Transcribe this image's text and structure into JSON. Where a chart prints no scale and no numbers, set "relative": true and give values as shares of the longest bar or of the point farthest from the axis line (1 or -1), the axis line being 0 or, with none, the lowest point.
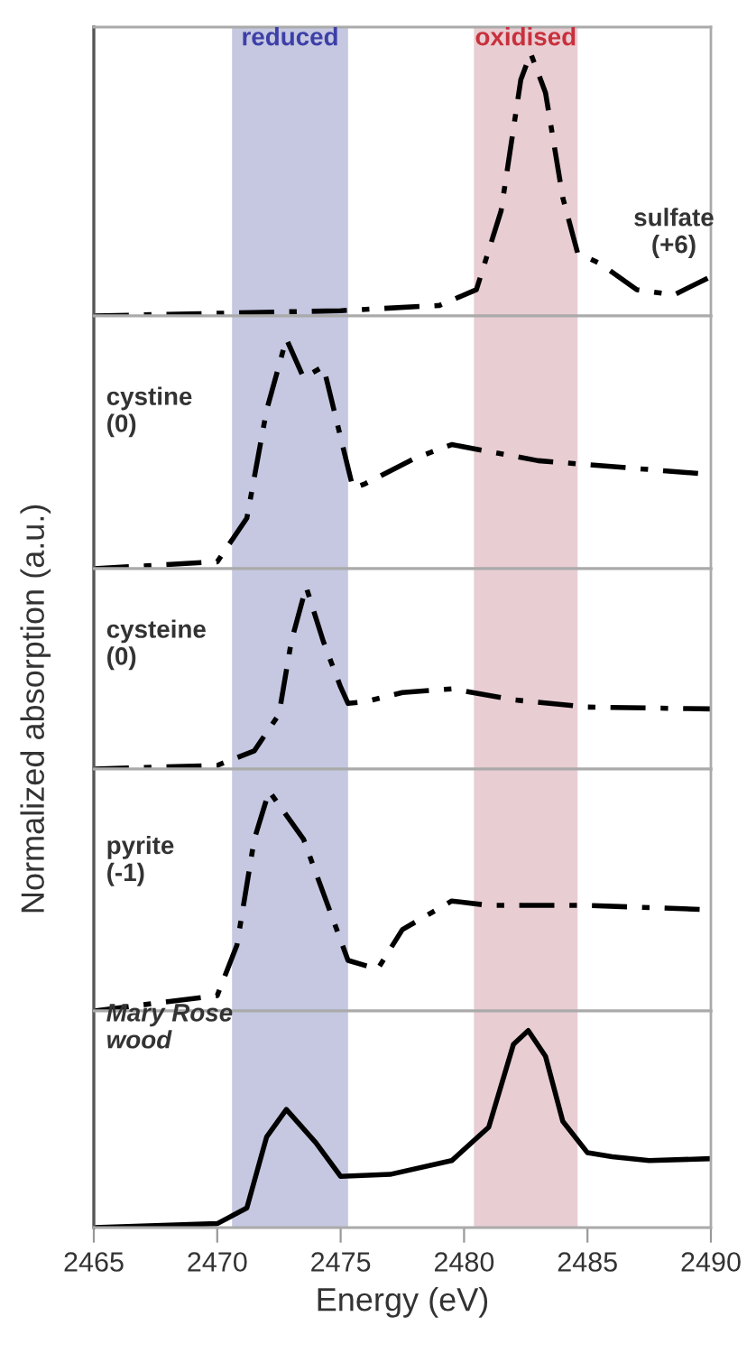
{
  "chart_data": [
    {
      "type": "line",
      "relative": true,
      "xlim": [
        2465,
        2490
      ],
      "xticks": [
        2465,
        2470,
        2475,
        2480,
        2485,
        2490
      ],
      "tick_labels": false,
      "line_style": "dashed",
      "grid": false,
      "legend": false,
      "series": [
        {
          "name": "sulfate\n(+6)",
          "color": "#000000",
          "x": [
            2465,
            2470,
            2475,
            2479,
            2480.5,
            2481.5,
            2482.3,
            2482.7,
            2483.3,
            2484,
            2484.6,
            2485.5,
            2487,
            2488.5,
            2490
          ],
          "values": [
            0,
            0.01,
            0.02,
            0.04,
            0.1,
            0.4,
            0.9,
            1,
            0.85,
            0.45,
            0.24,
            0.2,
            0.1,
            0.08,
            0.15
          ]
        }
      ],
      "bands": [
        {
          "axis": "x",
          "from": 2470.6,
          "to": 2475.3,
          "label": "reduced",
          "color": "#c5c8e0"
        },
        {
          "axis": "x",
          "from": 2480.4,
          "to": 2484.6,
          "label": "oxidised",
          "color": "#e8cdd2"
        }
      ]
    },
    {
      "type": "line",
      "relative": true,
      "xlim": [
        2465,
        2490
      ],
      "xticks": [
        2465,
        2470,
        2475,
        2480,
        2485,
        2490
      ],
      "tick_labels": false,
      "line_style": "dashed",
      "grid": false,
      "legend": false,
      "series": [
        {
          "name": "cystine\n(0)",
          "color": "#000000",
          "x": [
            2465,
            2470,
            2471.2,
            2472,
            2472.8,
            2473.5,
            2474.3,
            2475.5,
            2476,
            2478,
            2479.5,
            2483,
            2490
          ],
          "values": [
            0,
            0.03,
            0.22,
            0.69,
            1,
            0.83,
            0.88,
            0.35,
            0.37,
            0.48,
            0.54,
            0.47,
            0.41
          ]
        }
      ],
      "bands": [
        {
          "axis": "x",
          "from": 2470.6,
          "to": 2475.3,
          "color": "#c5c8e0"
        },
        {
          "axis": "x",
          "from": 2480.4,
          "to": 2484.6,
          "color": "#e8cdd2"
        }
      ]
    },
    {
      "type": "line",
      "relative": true,
      "xlim": [
        2465,
        2490
      ],
      "xticks": [
        2465,
        2470,
        2475,
        2480,
        2485,
        2490
      ],
      "tick_labels": false,
      "ylabel": "Normalized absorption (a.u.)",
      "line_style": "dashed",
      "grid": false,
      "legend": false,
      "series": [
        {
          "name": "cysteine\n(0)",
          "color": "#000000",
          "x": [
            2465,
            2470,
            2471.5,
            2472.5,
            2473,
            2473.6,
            2474.3,
            2475,
            2475.3,
            2476,
            2477.5,
            2479.5,
            2482,
            2485,
            2490
          ],
          "values": [
            0,
            0.02,
            0.1,
            0.3,
            0.7,
            1,
            0.7,
            0.45,
            0.36,
            0.37,
            0.42,
            0.44,
            0.38,
            0.34,
            0.33
          ]
        }
      ],
      "bands": [
        {
          "axis": "x",
          "from": 2470.6,
          "to": 2475.3,
          "color": "#c5c8e0"
        },
        {
          "axis": "x",
          "from": 2480.4,
          "to": 2484.6,
          "color": "#e8cdd2"
        }
      ]
    },
    {
      "type": "line",
      "relative": true,
      "xlim": [
        2465,
        2490
      ],
      "xticks": [
        2465,
        2470,
        2475,
        2480,
        2485,
        2490
      ],
      "tick_labels": false,
      "line_style": "dashed",
      "grid": false,
      "legend": false,
      "series": [
        {
          "name": "pyrite\n(-1)",
          "color": "#000000",
          "x": [
            2465,
            2470,
            2470.8,
            2471.5,
            2472.1,
            2473.5,
            2475.3,
            2476.5,
            2477.5,
            2479.5,
            2481,
            2485,
            2490
          ],
          "values": [
            0,
            0.07,
            0.3,
            0.78,
            1,
            0.78,
            0.23,
            0.19,
            0.37,
            0.5,
            0.48,
            0.48,
            0.46
          ]
        }
      ],
      "bands": [
        {
          "axis": "x",
          "from": 2470.6,
          "to": 2475.3,
          "color": "#c5c8e0"
        },
        {
          "axis": "x",
          "from": 2480.4,
          "to": 2484.6,
          "color": "#e8cdd2"
        }
      ]
    },
    {
      "type": "line",
      "relative": true,
      "xlim": [
        2465,
        2490
      ],
      "xticks": [
        2465,
        2470,
        2475,
        2480,
        2485,
        2490
      ],
      "tick_labels": "x",
      "xlabel": "Energy (eV)",
      "line_style": "solid",
      "grid": false,
      "legend": false,
      "series": [
        {
          "name": "Mary Rose\nwood",
          "color": "#000000",
          "x": [
            2465,
            2470,
            2471.2,
            2472,
            2472.8,
            2474,
            2475,
            2477,
            2479.5,
            2481,
            2482,
            2482.6,
            2483.3,
            2484,
            2485,
            2486,
            2487.5,
            2490
          ],
          "values": [
            0,
            0.02,
            0.1,
            0.46,
            0.6,
            0.43,
            0.26,
            0.27,
            0.34,
            0.51,
            0.93,
            1,
            0.87,
            0.54,
            0.38,
            0.36,
            0.34,
            0.35
          ]
        }
      ],
      "bands": [
        {
          "axis": "x",
          "from": 2470.6,
          "to": 2475.3,
          "color": "#c5c8e0"
        },
        {
          "axis": "x",
          "from": 2480.4,
          "to": 2484.6,
          "color": "#e8cdd2"
        }
      ]
    }
  ]
}
